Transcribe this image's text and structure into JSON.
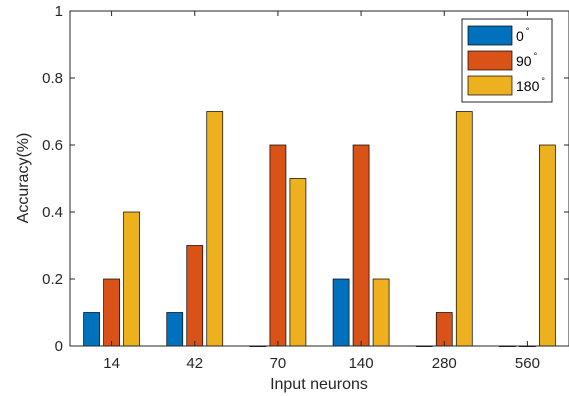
{
  "chart_data": {
    "type": "bar",
    "categories": [
      "14",
      "42",
      "70",
      "140",
      "280",
      "560"
    ],
    "series": [
      {
        "name": "0",
        "name_sup": "°",
        "color": "#0072BD",
        "values": [
          0.1,
          0.1,
          0.0,
          0.2,
          0.0,
          0.0
        ]
      },
      {
        "name": "90",
        "name_sup": "°",
        "color": "#D95319",
        "values": [
          0.2,
          0.3,
          0.6,
          0.6,
          0.1,
          0.0
        ]
      },
      {
        "name": "180",
        "name_sup": "°",
        "color": "#EDB120",
        "values": [
          0.4,
          0.7,
          0.5,
          0.2,
          0.7,
          0.6
        ]
      }
    ],
    "title": "",
    "xlabel": "Input neurons",
    "ylabel": "Accuracy(%)",
    "ylim": [
      0,
      1
    ],
    "yticks": [
      {
        "value": 0,
        "label": "0"
      },
      {
        "value": 0.2,
        "label": "0.2"
      },
      {
        "value": 0.4,
        "label": "0.4"
      },
      {
        "value": 0.6,
        "label": "0.6"
      },
      {
        "value": 0.8,
        "label": "0.8"
      },
      {
        "value": 1,
        "label": "1"
      }
    ],
    "grid": false,
    "legend_position": "top-right"
  }
}
